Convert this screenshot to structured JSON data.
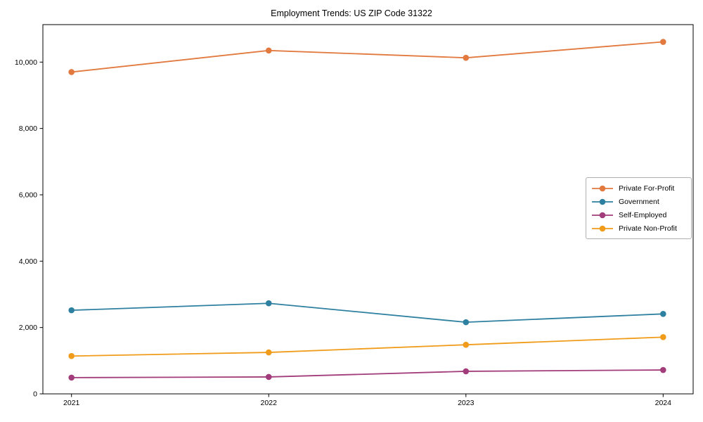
{
  "chart_data": {
    "type": "line",
    "title": "Employment Trends: US ZIP Code 31322",
    "categories": [
      "2021",
      "2022",
      "2023",
      "2024"
    ],
    "series": [
      {
        "name": "Private For-Profit",
        "color": "#E2793F",
        "values": [
          9700,
          10350,
          10130,
          10610
        ]
      },
      {
        "name": "Government",
        "color": "#2E80A0",
        "values": [
          2520,
          2730,
          2160,
          2410
        ]
      },
      {
        "name": "Self-Employed",
        "color": "#A23C7A",
        "values": [
          490,
          510,
          680,
          720
        ]
      },
      {
        "name": "Private Non-Profit",
        "color": "#F09C1A",
        "values": [
          1140,
          1250,
          1480,
          1710
        ]
      }
    ],
    "xlabel": "",
    "ylabel": "",
    "ylim": [
      0,
      11130
    ],
    "yticks": [
      {
        "value": 0,
        "label": "0"
      },
      {
        "value": 2000,
        "label": "2,000"
      },
      {
        "value": 4000,
        "label": "4,000"
      },
      {
        "value": 6000,
        "label": "6,000"
      },
      {
        "value": 8000,
        "label": "8,000"
      },
      {
        "value": 10000,
        "label": "10,000"
      }
    ],
    "grid": false,
    "legend_position": "center right"
  }
}
